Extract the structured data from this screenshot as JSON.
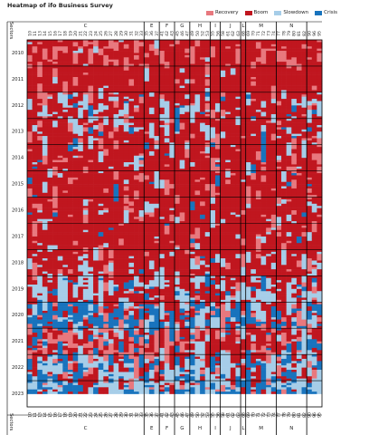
{
  "chart_data": {
    "type": "heatmap",
    "title": "Heatmap of ifo Business Survey",
    "legend": [
      {
        "label": "Recovery",
        "color": "#e8787e"
      },
      {
        "label": "Boom",
        "color": "#c0161f"
      },
      {
        "label": "Slowdown",
        "color": "#a6cde8"
      },
      {
        "label": "Crisis",
        "color": "#1873bd"
      }
    ],
    "no_data_color": "#ffffff",
    "row_axis_label": "Sectors",
    "years": [
      "2010",
      "2011",
      "2012",
      "2013",
      "2014",
      "2015",
      "2016",
      "2017",
      "2018",
      "2019",
      "2020",
      "2021",
      "2022",
      "2023"
    ],
    "months_per_year": 12,
    "sector_groups": [
      {
        "label": "C",
        "codes": [
          "10",
          "11",
          "13",
          "14",
          "15",
          "16",
          "17",
          "18",
          "19",
          "20",
          "21",
          "22",
          "23",
          "24",
          "25",
          "26",
          "27",
          "28",
          "29",
          "30",
          "31",
          "32",
          "33"
        ]
      },
      {
        "label": "E",
        "codes": [
          "35",
          "36",
          "37"
        ]
      },
      {
        "label": "F",
        "codes": [
          "41",
          "42",
          "43"
        ]
      },
      {
        "label": "G",
        "codes": [
          "45",
          "46",
          "47"
        ]
      },
      {
        "label": "H",
        "codes": [
          "49",
          "50",
          "52",
          "53"
        ]
      },
      {
        "label": "I",
        "codes": [
          "55",
          "56"
        ]
      },
      {
        "label": "J",
        "codes": [
          "58",
          "61",
          "62",
          "63"
        ]
      },
      {
        "label": "L",
        "codes": [
          "68"
        ]
      },
      {
        "label": "M",
        "codes": [
          "69",
          "70",
          "71",
          "72",
          "73",
          "74"
        ]
      },
      {
        "label": "N",
        "codes": [
          "77",
          "78",
          "79",
          "80",
          "81",
          "82"
        ]
      },
      {
        "label": "",
        "codes": [
          "90",
          "96",
          "95"
        ]
      }
    ],
    "period_weights": {
      "2010": [
        0.25,
        0.7,
        0.05,
        0.0
      ],
      "2011": [
        0.05,
        0.9,
        0.05,
        0.0
      ],
      "2012": [
        0.08,
        0.6,
        0.27,
        0.05
      ],
      "2013": [
        0.15,
        0.65,
        0.15,
        0.05
      ],
      "2014": [
        0.1,
        0.78,
        0.1,
        0.02
      ],
      "2015": [
        0.1,
        0.8,
        0.08,
        0.02
      ],
      "2016": [
        0.1,
        0.78,
        0.1,
        0.02
      ],
      "2017": [
        0.08,
        0.85,
        0.05,
        0.02
      ],
      "2018": [
        0.05,
        0.75,
        0.17,
        0.03
      ],
      "2019": [
        0.05,
        0.45,
        0.38,
        0.12
      ],
      "2020": [
        0.12,
        0.25,
        0.18,
        0.45
      ],
      "2021": [
        0.3,
        0.45,
        0.13,
        0.12
      ],
      "2022": [
        0.05,
        0.25,
        0.45,
        0.25
      ],
      "2023": [
        0.05,
        0.15,
        0.45,
        0.35
      ]
    },
    "final_year_months_observed": 6
  }
}
